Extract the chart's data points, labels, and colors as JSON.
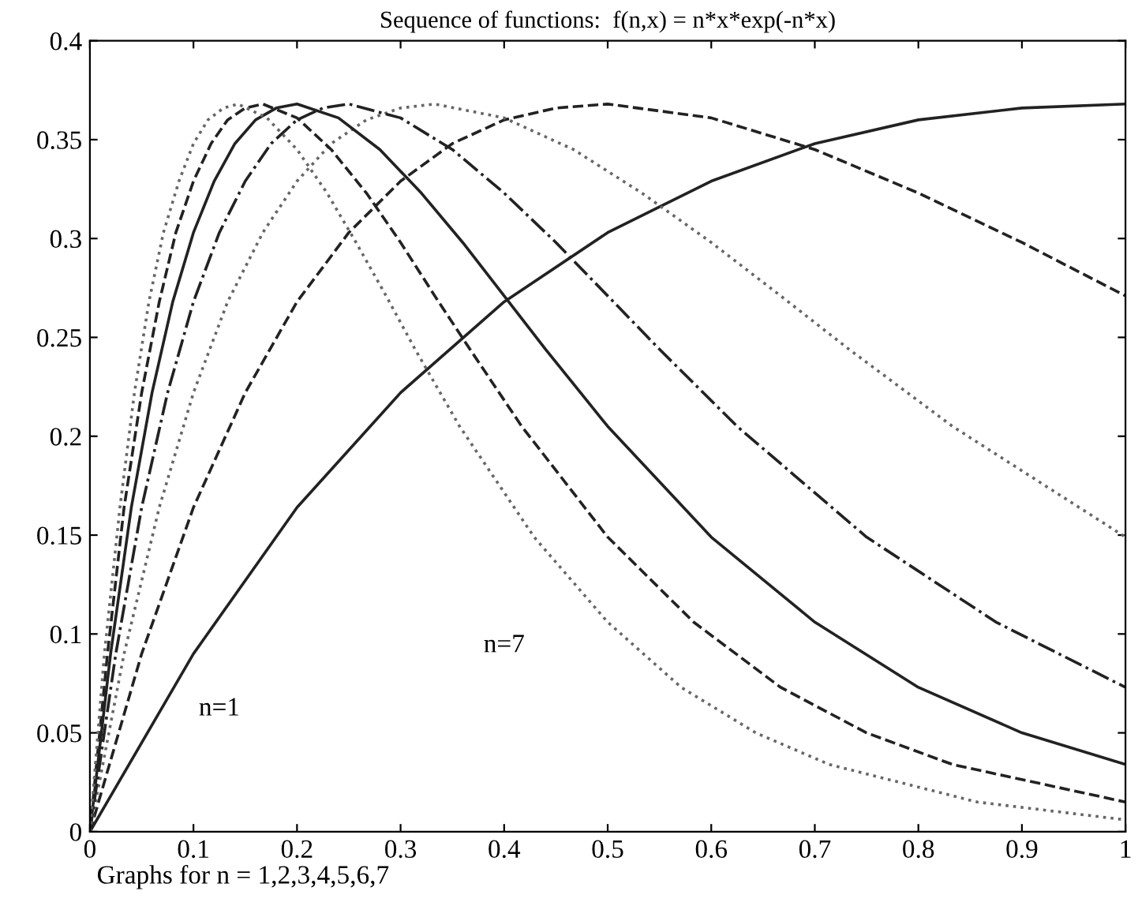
{
  "chart_data": {
    "type": "line",
    "title": "Sequence of functions:  f(n,x) = n*x*exp(-n*x)",
    "annotations": [
      "n=1",
      "n=7",
      "Graphs for n = 1,2,3,4,5,6,7"
    ],
    "series": [
      {
        "color": "#222222",
        "line_style": "solid",
        "x": [
          0,
          0.1,
          0.2,
          0.3,
          0.4,
          0.5,
          0.6,
          0.7,
          0.8,
          0.9,
          1.0
        ],
        "values": [
          0,
          0.09,
          0.164,
          0.222,
          0.268,
          0.303,
          0.329,
          0.348,
          0.36,
          0.366,
          0.368
        ]
      },
      {
        "color": "#222222",
        "line_style": "dashed",
        "x": [
          0,
          0.05,
          0.1,
          0.15,
          0.2,
          0.25,
          0.3,
          0.35,
          0.4,
          0.45,
          0.5,
          0.6,
          0.7,
          0.8,
          0.9,
          1.0
        ],
        "values": [
          0,
          0.09,
          0.164,
          0.222,
          0.268,
          0.303,
          0.329,
          0.348,
          0.36,
          0.366,
          0.368,
          0.361,
          0.345,
          0.323,
          0.298,
          0.271
        ]
      },
      {
        "color": "#666666",
        "line_style": "dotted",
        "x": [
          0,
          0.033,
          0.067,
          0.1,
          0.133,
          0.167,
          0.2,
          0.233,
          0.267,
          0.3,
          0.333,
          0.4,
          0.467,
          0.533,
          0.6,
          0.667,
          0.733,
          0.833,
          1.0
        ],
        "values": [
          0,
          0.09,
          0.164,
          0.222,
          0.268,
          0.303,
          0.329,
          0.348,
          0.36,
          0.366,
          0.368,
          0.361,
          0.345,
          0.323,
          0.298,
          0.271,
          0.244,
          0.205,
          0.149
        ]
      },
      {
        "color": "#222222",
        "line_style": "dashdot",
        "x": [
          0,
          0.025,
          0.05,
          0.075,
          0.1,
          0.125,
          0.15,
          0.175,
          0.2,
          0.225,
          0.25,
          0.3,
          0.35,
          0.4,
          0.45,
          0.5,
          0.55,
          0.625,
          0.75,
          0.875,
          1.0
        ],
        "values": [
          0,
          0.09,
          0.164,
          0.222,
          0.268,
          0.303,
          0.329,
          0.348,
          0.36,
          0.366,
          0.368,
          0.361,
          0.345,
          0.323,
          0.298,
          0.271,
          0.244,
          0.205,
          0.149,
          0.106,
          0.073
        ]
      },
      {
        "color": "#222222",
        "line_style": "solid",
        "x": [
          0,
          0.02,
          0.04,
          0.06,
          0.08,
          0.1,
          0.12,
          0.14,
          0.16,
          0.18,
          0.2,
          0.24,
          0.28,
          0.32,
          0.36,
          0.4,
          0.44,
          0.5,
          0.6,
          0.7,
          0.8,
          0.9,
          1.0
        ],
        "values": [
          0,
          0.09,
          0.164,
          0.222,
          0.268,
          0.303,
          0.329,
          0.348,
          0.36,
          0.366,
          0.368,
          0.361,
          0.345,
          0.323,
          0.298,
          0.271,
          0.244,
          0.205,
          0.149,
          0.106,
          0.073,
          0.05,
          0.034
        ]
      },
      {
        "color": "#222222",
        "line_style": "dashed",
        "x": [
          0,
          0.017,
          0.033,
          0.05,
          0.067,
          0.083,
          0.1,
          0.117,
          0.133,
          0.15,
          0.167,
          0.2,
          0.233,
          0.267,
          0.3,
          0.333,
          0.367,
          0.417,
          0.5,
          0.583,
          0.667,
          0.75,
          0.833,
          1.0
        ],
        "values": [
          0,
          0.09,
          0.164,
          0.222,
          0.268,
          0.303,
          0.329,
          0.348,
          0.36,
          0.366,
          0.368,
          0.361,
          0.345,
          0.323,
          0.298,
          0.271,
          0.244,
          0.205,
          0.149,
          0.106,
          0.073,
          0.05,
          0.034,
          0.015
        ]
      },
      {
        "color": "#666666",
        "line_style": "dotted",
        "x": [
          0,
          0.014,
          0.029,
          0.043,
          0.057,
          0.071,
          0.086,
          0.1,
          0.114,
          0.129,
          0.143,
          0.171,
          0.2,
          0.229,
          0.257,
          0.286,
          0.314,
          0.357,
          0.429,
          0.5,
          0.571,
          0.643,
          0.714,
          0.857,
          1.0
        ],
        "values": [
          0,
          0.09,
          0.164,
          0.222,
          0.268,
          0.303,
          0.329,
          0.348,
          0.36,
          0.366,
          0.368,
          0.361,
          0.345,
          0.323,
          0.298,
          0.271,
          0.244,
          0.205,
          0.149,
          0.106,
          0.073,
          0.05,
          0.034,
          0.015,
          0.006
        ]
      }
    ],
    "xlim": [
      0,
      1
    ],
    "xticks": [
      0,
      0.1,
      0.2,
      0.3,
      0.4,
      0.5,
      0.6,
      0.7,
      0.8,
      0.9,
      1
    ],
    "ylim": [
      0,
      0.4
    ],
    "yticks": [
      0,
      0.05,
      0.1,
      0.15,
      0.2,
      0.25,
      0.3,
      0.35,
      0.4
    ],
    "grid": false,
    "legend": false,
    "marker": "none"
  }
}
